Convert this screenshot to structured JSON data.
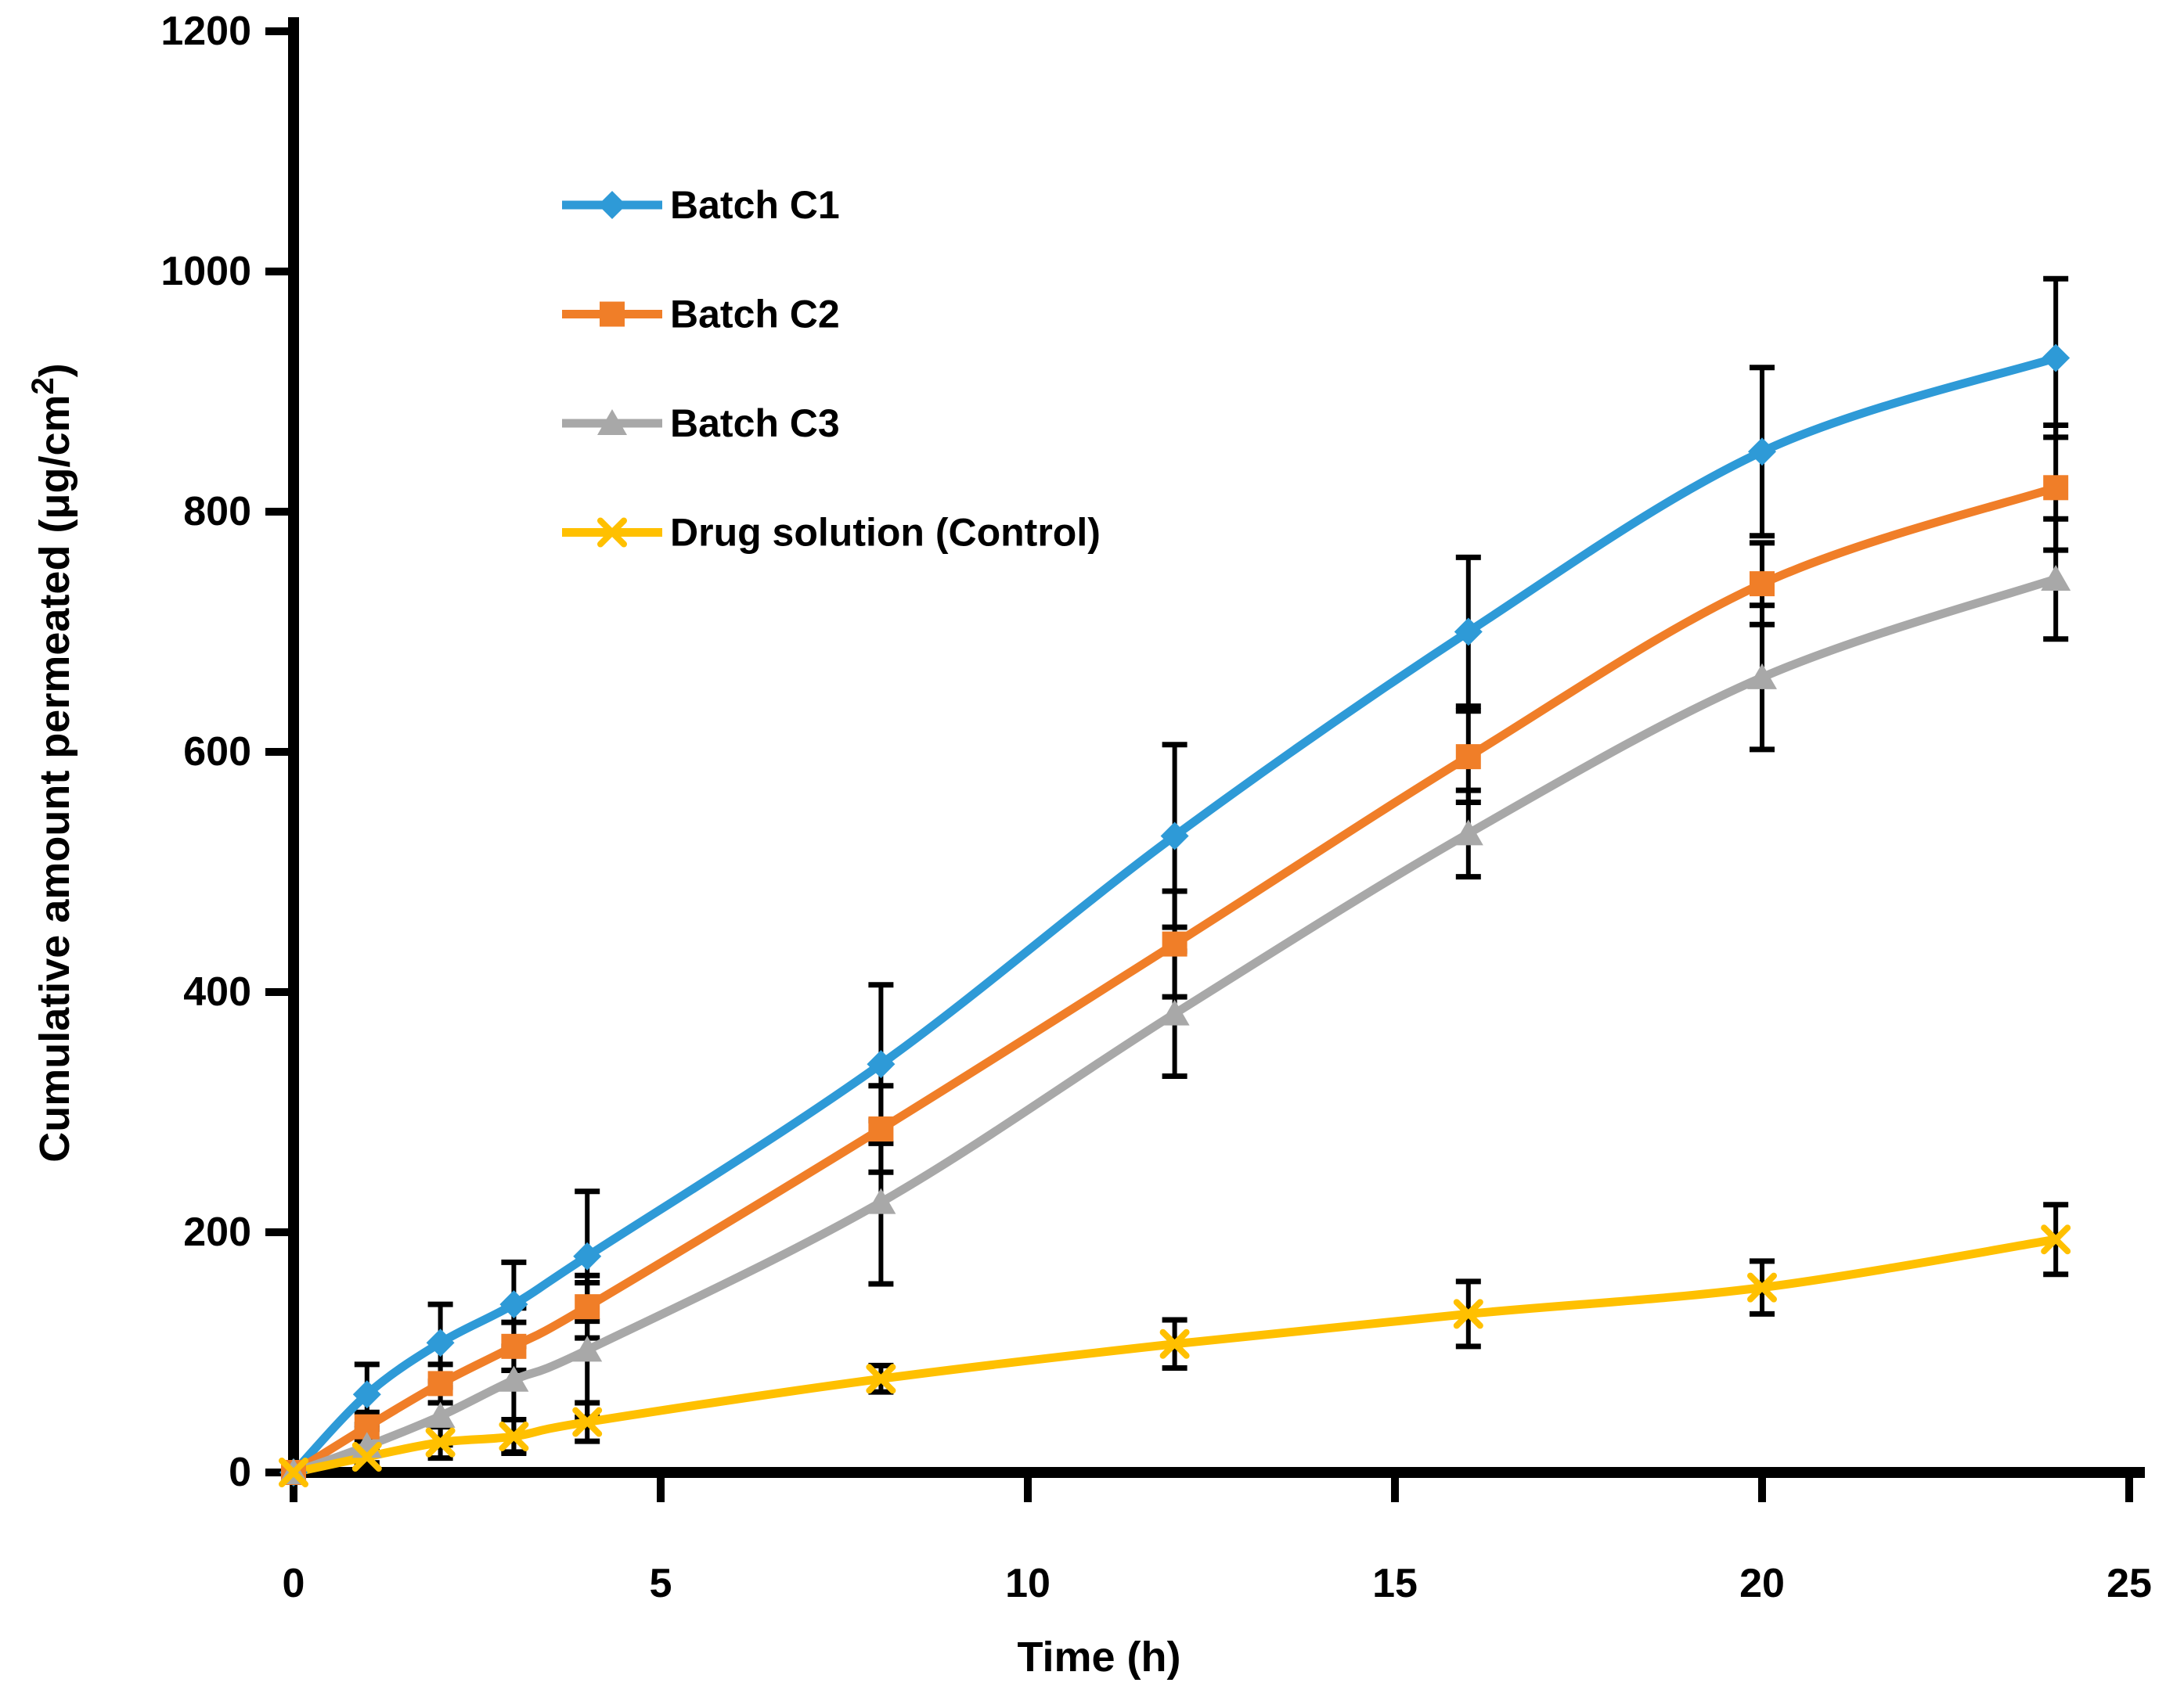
{
  "chart_data": {
    "type": "line",
    "title": "",
    "xlabel": "Time (h)",
    "ylabel_parts": {
      "main": "Cumulative amount permeated (μg/cm",
      "superscript": "2",
      "suffix": ")"
    },
    "xlim": [
      0,
      25
    ],
    "ylim": [
      0,
      1200
    ],
    "x_ticks": [
      0,
      5,
      10,
      15,
      20,
      25
    ],
    "y_ticks": [
      0,
      200,
      400,
      600,
      800,
      1000,
      1200
    ],
    "grid": false,
    "legend_position": "inside-upper-left",
    "x": [
      0,
      1,
      2,
      3,
      4,
      8,
      12,
      16,
      20,
      24
    ],
    "series": [
      {
        "name": "Batch C1",
        "color": "#2E9AD7",
        "marker": "diamond",
        "values": [
          0,
          65,
          108,
          140,
          180,
          340,
          530,
          700,
          850,
          928
        ],
        "errors": [
          0,
          25,
          32,
          35,
          54,
          66,
          76,
          62,
          70,
          66
        ]
      },
      {
        "name": "Batch C2",
        "color": "#F07E28",
        "marker": "square",
        "values": [
          0,
          38,
          74,
          105,
          138,
          286,
          440,
          596,
          740,
          820
        ],
        "errors": [
          0,
          12,
          16,
          20,
          26,
          36,
          44,
          38,
          34,
          52
        ]
      },
      {
        "name": "Batch C3",
        "color": "#A8A8A8",
        "marker": "triangle",
        "values": [
          0,
          22,
          47,
          77,
          102,
          225,
          382,
          532,
          662,
          744
        ],
        "errors": [
          0,
          14,
          24,
          60,
          56,
          68,
          52,
          36,
          60,
          50
        ]
      },
      {
        "name": "Drug solution (Control)",
        "color": "#FFC000",
        "marker": "x",
        "values": [
          0,
          13,
          25,
          30,
          42,
          78,
          107,
          132,
          154,
          194
        ],
        "errors": [
          0,
          8,
          13,
          14,
          16,
          11,
          20,
          27,
          22,
          29
        ]
      }
    ],
    "styles": {
      "axis_color": "#000000",
      "error_bar_color": "#000000",
      "text_color": "#000000",
      "background": "#ffffff"
    }
  }
}
